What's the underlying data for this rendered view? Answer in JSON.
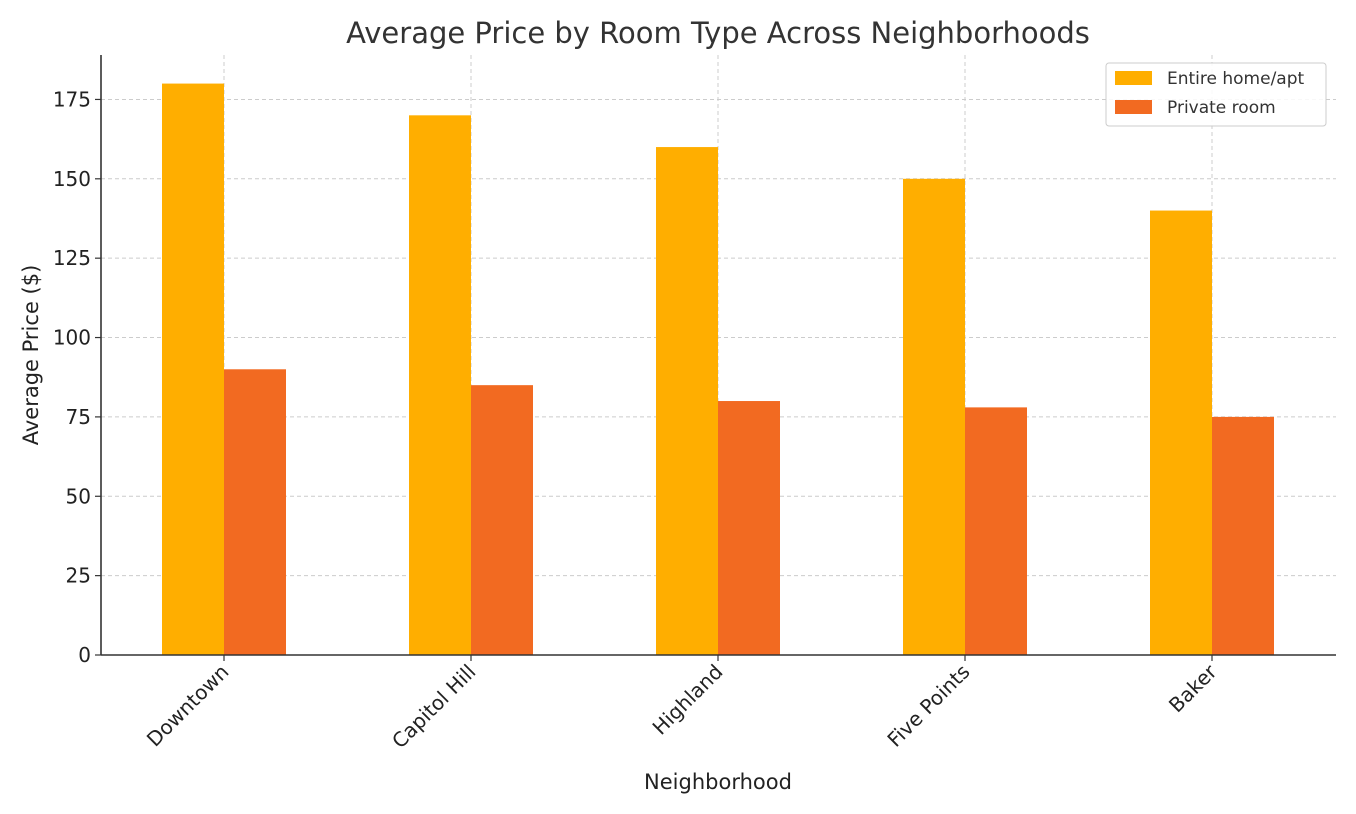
{
  "chart_data": {
    "type": "bar",
    "title": "Average Price by Room Type Across Neighborhoods",
    "xlabel": "Neighborhood",
    "ylabel": "Average Price ($)",
    "categories": [
      "Downtown",
      "Capitol Hill",
      "Highland",
      "Five Points",
      "Baker"
    ],
    "series": [
      {
        "name": "Entire home/apt",
        "values": [
          180,
          170,
          160,
          150,
          140
        ],
        "color": "#FFAE00"
      },
      {
        "name": "Private room",
        "values": [
          90,
          85,
          80,
          78,
          75
        ],
        "color": "#F26A21"
      }
    ],
    "ylim": [
      0,
      189
    ],
    "yticks": [
      0,
      25,
      50,
      75,
      100,
      125,
      150,
      175
    ],
    "grid": true,
    "legend_position": "top-right"
  }
}
